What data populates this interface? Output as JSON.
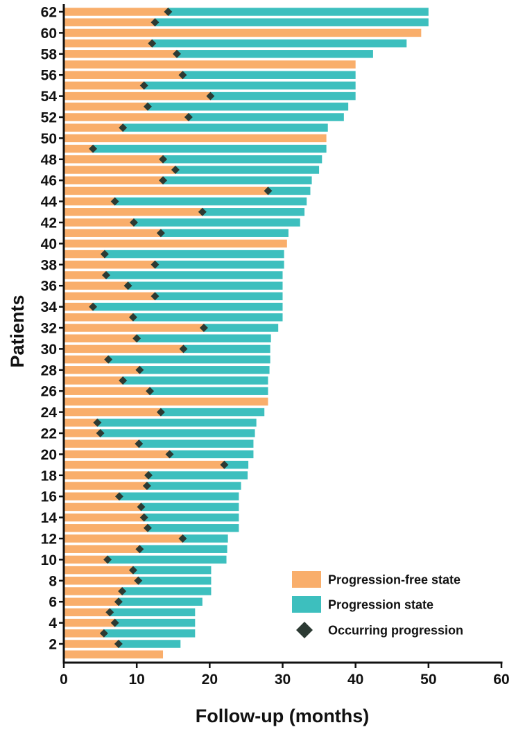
{
  "chart_data": {
    "type": "bar",
    "orientation": "horizontal",
    "stacked": true,
    "xlabel": "Follow-up (months)",
    "ylabel": "Patients",
    "xlim": [
      0,
      60
    ],
    "x_ticks": [
      0,
      10,
      20,
      30,
      40,
      50,
      60
    ],
    "y_ticks": [
      2,
      4,
      6,
      8,
      10,
      12,
      14,
      16,
      18,
      20,
      22,
      24,
      26,
      28,
      30,
      32,
      34,
      36,
      38,
      40,
      42,
      44,
      46,
      48,
      50,
      52,
      54,
      56,
      58,
      60,
      62
    ],
    "legend": {
      "position": "bottom-right",
      "entries": [
        {
          "label": "Progression-free state",
          "color": "#F9AE6B",
          "shape": "rect"
        },
        {
          "label": "Progression state",
          "color": "#3DBFBE",
          "shape": "rect"
        },
        {
          "label": "Occurring progression",
          "color": "#2C3A33",
          "shape": "diamond"
        }
      ]
    },
    "colors": {
      "progression_free": "#F9AE6B",
      "progression": "#3DBFBE",
      "marker": "#2C3A33",
      "axis": "#111111"
    },
    "patients": [
      {
        "id": 1,
        "total": 13.6,
        "progression": null
      },
      {
        "id": 2,
        "total": 16.0,
        "progression": 7.5
      },
      {
        "id": 3,
        "total": 18.0,
        "progression": 5.5
      },
      {
        "id": 4,
        "total": 18.0,
        "progression": 7.0
      },
      {
        "id": 5,
        "total": 18.0,
        "progression": 6.3
      },
      {
        "id": 6,
        "total": 19.0,
        "progression": 7.5
      },
      {
        "id": 7,
        "total": 20.2,
        "progression": 8.0
      },
      {
        "id": 8,
        "total": 20.2,
        "progression": 10.2
      },
      {
        "id": 9,
        "total": 20.2,
        "progression": 9.5
      },
      {
        "id": 10,
        "total": 22.3,
        "progression": 6.0
      },
      {
        "id": 11,
        "total": 22.4,
        "progression": 10.4
      },
      {
        "id": 12,
        "total": 22.5,
        "progression": 16.3
      },
      {
        "id": 13,
        "total": 24.0,
        "progression": 11.5
      },
      {
        "id": 14,
        "total": 24.0,
        "progression": 11.0
      },
      {
        "id": 15,
        "total": 24.0,
        "progression": 10.6
      },
      {
        "id": 16,
        "total": 24.0,
        "progression": 7.6
      },
      {
        "id": 17,
        "total": 24.3,
        "progression": 11.4
      },
      {
        "id": 18,
        "total": 25.2,
        "progression": 11.6
      },
      {
        "id": 19,
        "total": 25.3,
        "progression": 22.0
      },
      {
        "id": 20,
        "total": 26.0,
        "progression": 14.5
      },
      {
        "id": 21,
        "total": 26.0,
        "progression": 10.3
      },
      {
        "id": 22,
        "total": 26.2,
        "progression": 5.0
      },
      {
        "id": 23,
        "total": 26.4,
        "progression": 4.6
      },
      {
        "id": 24,
        "total": 27.5,
        "progression": 13.3
      },
      {
        "id": 25,
        "total": 28.0,
        "progression": null
      },
      {
        "id": 26,
        "total": 28.0,
        "progression": 11.8
      },
      {
        "id": 27,
        "total": 28.0,
        "progression": 8.1
      },
      {
        "id": 28,
        "total": 28.2,
        "progression": 10.4
      },
      {
        "id": 29,
        "total": 28.3,
        "progression": 6.1
      },
      {
        "id": 30,
        "total": 28.3,
        "progression": 16.4
      },
      {
        "id": 31,
        "total": 28.4,
        "progression": 10.0
      },
      {
        "id": 32,
        "total": 29.4,
        "progression": 19.2
      },
      {
        "id": 33,
        "total": 30.0,
        "progression": 9.5
      },
      {
        "id": 34,
        "total": 30.0,
        "progression": 4.0
      },
      {
        "id": 35,
        "total": 30.0,
        "progression": 12.5
      },
      {
        "id": 36,
        "total": 30.0,
        "progression": 8.8
      },
      {
        "id": 37,
        "total": 30.0,
        "progression": 5.8
      },
      {
        "id": 38,
        "total": 30.2,
        "progression": 12.5
      },
      {
        "id": 39,
        "total": 30.2,
        "progression": 5.6
      },
      {
        "id": 40,
        "total": 30.6,
        "progression": null
      },
      {
        "id": 41,
        "total": 30.8,
        "progression": 13.3
      },
      {
        "id": 42,
        "total": 32.4,
        "progression": 9.6
      },
      {
        "id": 43,
        "total": 33.0,
        "progression": 19.0
      },
      {
        "id": 44,
        "total": 33.3,
        "progression": 7.0
      },
      {
        "id": 45,
        "total": 33.8,
        "progression": 28.0
      },
      {
        "id": 46,
        "total": 34.0,
        "progression": 13.6
      },
      {
        "id": 47,
        "total": 35.0,
        "progression": 15.3
      },
      {
        "id": 48,
        "total": 35.4,
        "progression": 13.6
      },
      {
        "id": 49,
        "total": 36.0,
        "progression": 4.0
      },
      {
        "id": 50,
        "total": 36.0,
        "progression": null
      },
      {
        "id": 51,
        "total": 36.2,
        "progression": 8.1
      },
      {
        "id": 52,
        "total": 38.4,
        "progression": 17.1
      },
      {
        "id": 53,
        "total": 39.0,
        "progression": 11.5
      },
      {
        "id": 54,
        "total": 40.0,
        "progression": 20.1
      },
      {
        "id": 55,
        "total": 40.0,
        "progression": 11.0
      },
      {
        "id": 56,
        "total": 40.0,
        "progression": 16.3
      },
      {
        "id": 57,
        "total": 40.0,
        "progression": null
      },
      {
        "id": 58,
        "total": 42.4,
        "progression": 15.5
      },
      {
        "id": 59,
        "total": 47.0,
        "progression": 12.1
      },
      {
        "id": 60,
        "total": 49.0,
        "progression": null
      },
      {
        "id": 61,
        "total": 50.0,
        "progression": 12.5
      },
      {
        "id": 62,
        "total": 50.0,
        "progression": 14.3
      }
    ]
  }
}
